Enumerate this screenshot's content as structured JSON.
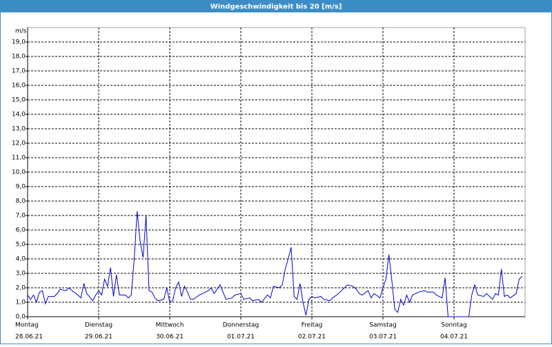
{
  "chart_data": {
    "type": "line",
    "title": "Windgeschwindigkeit bis 20 [m/s]",
    "ylabel": "m/s",
    "color": "#0000c8",
    "grid": true,
    "xlim": [
      0,
      168
    ],
    "ylim": [
      0,
      20
    ],
    "xticks": [
      {
        "value": 0,
        "label": "Montag"
      },
      {
        "value": 24,
        "label": "Dienstag"
      },
      {
        "value": 48,
        "label": "Mittwoch"
      },
      {
        "value": 72,
        "label": "Donnerstag"
      },
      {
        "value": 96,
        "label": "Freitag"
      },
      {
        "value": 120,
        "label": "Samstag"
      },
      {
        "value": 144,
        "label": "Sonntag"
      }
    ],
    "xtick_dates": [
      "28.06.21",
      "29.06.21",
      "30.06.21",
      "01.07.21",
      "02.07.21",
      "03.07.21",
      "04.07.21"
    ],
    "yticks": [
      {
        "value": 0,
        "label": "0,0"
      },
      {
        "value": 1,
        "label": "1,0"
      },
      {
        "value": 2,
        "label": "2,0"
      },
      {
        "value": 3,
        "label": "3,0"
      },
      {
        "value": 4,
        "label": "4,0"
      },
      {
        "value": 5,
        "label": "5,0"
      },
      {
        "value": 6,
        "label": "6,0"
      },
      {
        "value": 7,
        "label": "7,0"
      },
      {
        "value": 8,
        "label": "8,0"
      },
      {
        "value": 9,
        "label": "9,0"
      },
      {
        "value": 10,
        "label": "10,0"
      },
      {
        "value": 11,
        "label": "11,0"
      },
      {
        "value": 12,
        "label": "12,0"
      },
      {
        "value": 13,
        "label": "13,0"
      },
      {
        "value": 14,
        "label": "14,0"
      },
      {
        "value": 15,
        "label": "15,0"
      },
      {
        "value": 16,
        "label": "16,0"
      },
      {
        "value": 17,
        "label": "17,0"
      },
      {
        "value": 18,
        "label": "18,0"
      },
      {
        "value": 19,
        "label": "19,0"
      }
    ],
    "x": [
      0,
      1,
      2,
      3,
      4,
      5,
      6,
      7,
      9,
      10,
      11,
      13,
      14,
      15,
      17,
      18,
      19,
      20,
      22,
      23,
      24,
      25,
      26,
      27,
      28,
      29,
      30,
      31,
      33,
      34,
      35,
      36,
      37,
      38,
      39,
      40,
      41,
      42,
      43,
      44,
      46,
      47,
      48,
      49,
      50,
      51,
      52,
      53,
      54,
      55,
      56,
      58,
      61,
      62,
      63,
      65,
      67,
      69,
      70,
      72,
      73,
      75,
      76,
      78,
      79,
      81,
      82,
      83,
      85,
      86,
      87,
      88,
      89,
      90,
      91,
      92,
      93,
      94,
      95,
      96,
      97,
      99,
      100,
      102,
      103,
      105,
      106,
      108,
      110,
      111,
      112,
      113,
      115,
      116,
      117,
      119,
      120,
      121,
      122,
      123,
      124,
      125,
      126,
      127,
      128,
      129,
      130,
      132,
      134,
      135,
      137,
      138,
      140,
      141,
      142,
      149,
      150,
      151,
      152,
      154,
      155,
      157,
      158,
      159,
      160,
      161,
      162,
      163,
      165,
      166,
      167
    ],
    "values": [
      1.5,
      1.2,
      1.5,
      1.0,
      1.7,
      1.8,
      0.9,
      1.4,
      1.4,
      1.6,
      1.9,
      1.8,
      2.0,
      1.8,
      1.5,
      1.3,
      2.3,
      1.6,
      1.1,
      1.5,
      1.8,
      1.5,
      2.6,
      2.1,
      3.4,
      1.4,
      2.9,
      1.5,
      1.5,
      1.3,
      1.5,
      4.0,
      7.3,
      5.2,
      4.1,
      7.0,
      1.8,
      1.7,
      1.3,
      1.1,
      1.2,
      2.0,
      1.0,
      1.1,
      2.0,
      2.4,
      1.4,
      2.1,
      1.7,
      1.2,
      1.2,
      1.5,
      1.8,
      2.0,
      1.6,
      2.2,
      1.2,
      1.3,
      1.5,
      1.6,
      1.2,
      1.3,
      1.1,
      1.2,
      1.0,
      1.5,
      1.3,
      2.1,
      2.0,
      2.2,
      3.3,
      4.0,
      4.8,
      1.4,
      1.2,
      2.3,
      1.0,
      0.1,
      1.2,
      1.4,
      1.3,
      1.4,
      1.2,
      1.1,
      1.3,
      1.6,
      1.8,
      2.2,
      2.1,
      1.9,
      1.6,
      1.5,
      1.8,
      1.3,
      1.6,
      1.3,
      2.0,
      2.6,
      4.3,
      2.5,
      0.5,
      0.3,
      1.2,
      0.8,
      1.5,
      1.0,
      1.5,
      1.7,
      1.8,
      1.7,
      1.7,
      1.5,
      1.3,
      2.7,
      0,
      0,
      1.5,
      2.2,
      1.5,
      1.4,
      1.6,
      1.2,
      1.6,
      1.5,
      3.3,
      1.4,
      1.5,
      1.3,
      1.6,
      2.6,
      2.8
    ]
  }
}
